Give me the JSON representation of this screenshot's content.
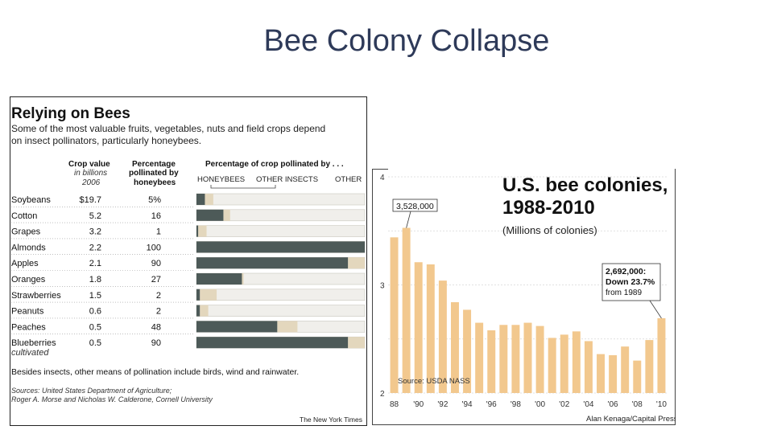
{
  "slide": {
    "title": "Bee Colony Collapse"
  },
  "colors": {
    "honeybees": "#4d5a58",
    "other_insects": "#e3d7bd",
    "other": "#f0efeb",
    "bee_bar": "#f2c88e",
    "title_text": "#2e3a59"
  },
  "chart_data": [
    {
      "type": "table",
      "title": "Relying on Bees",
      "subtitle": [
        "Some of the most valuable fruits, vegetables, nuts and field crops depend",
        "on insect pollinators, particularly honeybees."
      ],
      "columns": {
        "crop_value": [
          "Crop value",
          "in billions",
          "2006"
        ],
        "pct_bee": [
          "Percentage",
          "pollinated by",
          "honeybees"
        ],
        "pct_crop": "Percentage of crop pollinated by . . ."
      },
      "legend": [
        "HONEYBEES",
        "OTHER INSECTS",
        "OTHER"
      ],
      "rows": [
        {
          "crop": "Soybeans",
          "value": "$19.7",
          "pct": "5%",
          "honeybees": 5,
          "other_insects": 5
        },
        {
          "crop": "Cotton",
          "value": "5.2",
          "pct": "16",
          "honeybees": 16,
          "other_insects": 4
        },
        {
          "crop": "Grapes",
          "value": "3.2",
          "pct": "1",
          "honeybees": 1,
          "other_insects": 5
        },
        {
          "crop": "Almonds",
          "value": "2.2",
          "pct": "100",
          "honeybees": 100,
          "other_insects": 0
        },
        {
          "crop": "Apples",
          "value": "2.1",
          "pct": "90",
          "honeybees": 90,
          "other_insects": 10
        },
        {
          "crop": "Oranges",
          "value": "1.8",
          "pct": "27",
          "honeybees": 27,
          "other_insects": 1
        },
        {
          "crop": "Strawberries",
          "value": "1.5",
          "pct": "2",
          "honeybees": 2,
          "other_insects": 10
        },
        {
          "crop": "Peanuts",
          "value": "0.6",
          "pct": "2",
          "honeybees": 2,
          "other_insects": 5
        },
        {
          "crop": "Peaches",
          "value": "0.5",
          "pct": "48",
          "honeybees": 48,
          "other_insects": 12
        },
        {
          "crop": "Blueberries",
          "crop_note": "cultivated",
          "value": "0.5",
          "pct": "90",
          "honeybees": 90,
          "other_insects": 10
        }
      ],
      "note": "Besides insects, other means of pollination include birds, wind and rainwater.",
      "sources": [
        "Sources: United States Department of Agriculture;",
        "Roger A. Morse and Nicholas W. Calderone, Cornell University"
      ],
      "credit": "The New York Times"
    },
    {
      "type": "bar",
      "title": [
        "U.S. bee colonies,",
        "1988-2010"
      ],
      "subtitle": "(Millions of colonies)",
      "x": [
        1988,
        1989,
        1990,
        1991,
        1992,
        1993,
        1994,
        1995,
        1996,
        1997,
        1998,
        1999,
        2000,
        2001,
        2002,
        2003,
        2004,
        2005,
        2006,
        2007,
        2008,
        2009,
        2010
      ],
      "values": [
        3.44,
        3.528,
        3.21,
        3.19,
        3.04,
        2.84,
        2.77,
        2.65,
        2.58,
        2.63,
        2.63,
        2.65,
        2.62,
        2.51,
        2.54,
        2.57,
        2.48,
        2.36,
        2.35,
        2.43,
        2.3,
        2.49,
        2.692
      ],
      "xtick_labels": [
        "88",
        "'90",
        "'92",
        "'94",
        "'96",
        "'98",
        "'00",
        "'02",
        "'04",
        "'06",
        "'08",
        "'10"
      ],
      "ytick_labels": [
        "2",
        "3",
        "4"
      ],
      "ylim": [
        2,
        4
      ],
      "annotations": [
        {
          "year": 1989,
          "text": [
            "3,528,000"
          ]
        },
        {
          "year": 2010,
          "text": [
            "2,692,000:",
            "Down 23.7%",
            "from 1989"
          ]
        }
      ],
      "source": "Source: USDA NASS",
      "credit": "Alan Kenaga/Capital Press"
    }
  ]
}
